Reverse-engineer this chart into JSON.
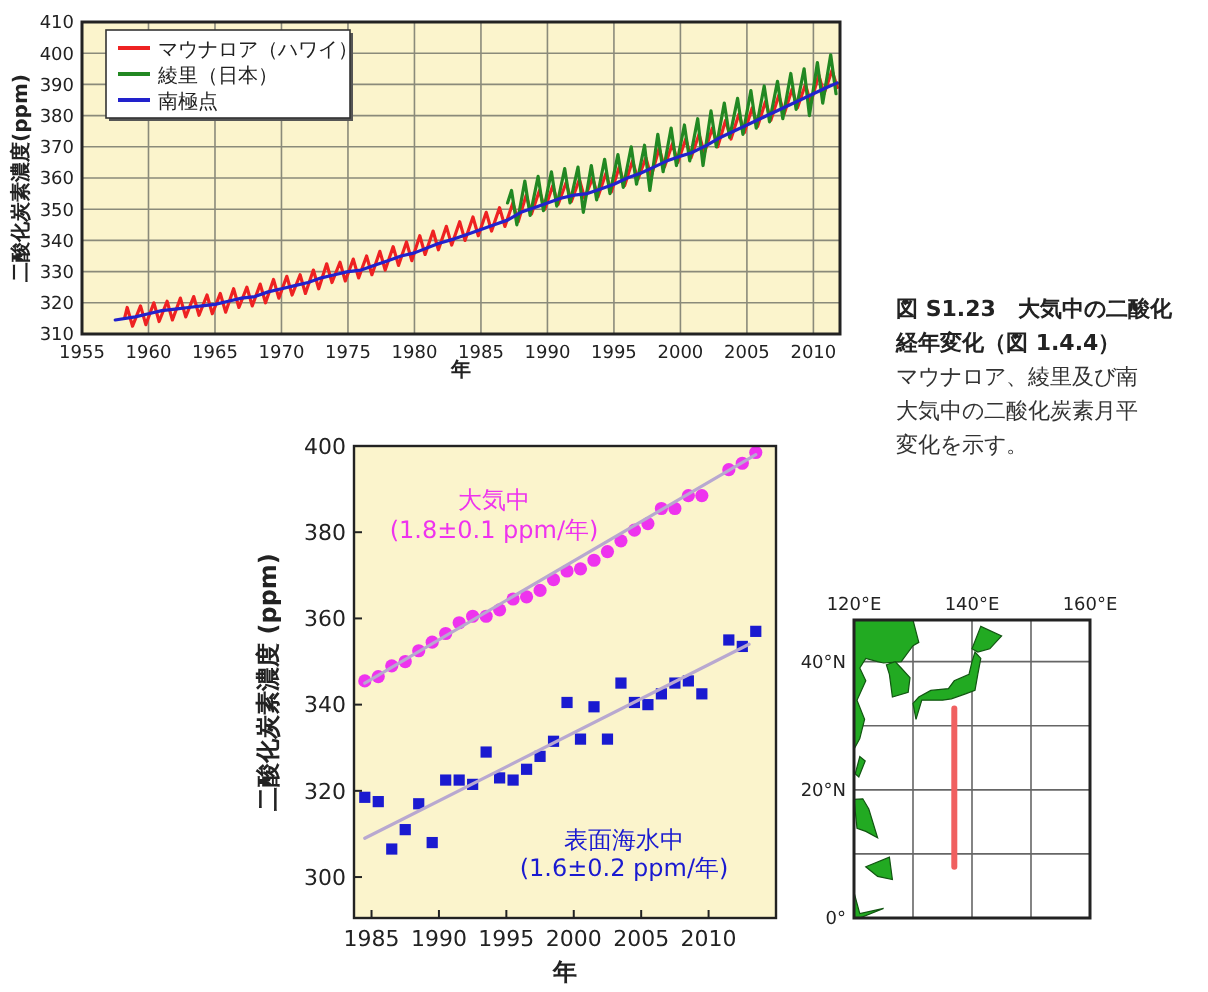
{
  "chart_data": [
    {
      "type": "line",
      "xlabel": "年",
      "ylabel": "二酸化炭素濃度(ppm)",
      "xlim": [
        1955,
        2012
      ],
      "ylim": [
        310,
        410
      ],
      "xticks": [
        1955,
        1960,
        1965,
        1970,
        1975,
        1980,
        1985,
        1990,
        1995,
        2000,
        2005,
        2010
      ],
      "yticks": [
        310,
        320,
        330,
        340,
        350,
        360,
        370,
        380,
        390,
        400,
        410
      ],
      "grid": true,
      "legend": "top left",
      "marker": "none",
      "line_style": "solid",
      "series": [
        {
          "name": "マウナロア（ハワイ）",
          "color": "#ee2222",
          "x": [
            1958.2,
            1958.4,
            1958.8,
            1959.4,
            1959.8,
            1960.4,
            1960.8,
            1961.4,
            1961.8,
            1962.4,
            1962.8,
            1963.4,
            1963.8,
            1964.4,
            1964.8,
            1965.4,
            1965.8,
            1966.4,
            1966.8,
            1967.4,
            1967.8,
            1968.4,
            1968.8,
            1969.4,
            1969.8,
            1970.4,
            1970.8,
            1971.4,
            1971.8,
            1972.4,
            1972.8,
            1973.4,
            1973.8,
            1974.4,
            1974.8,
            1975.4,
            1975.8,
            1976.4,
            1976.8,
            1977.4,
            1977.8,
            1978.4,
            1978.8,
            1979.4,
            1979.8,
            1980.4,
            1980.8,
            1981.4,
            1981.8,
            1982.4,
            1982.8,
            1983.4,
            1983.8,
            1984.4,
            1984.8,
            1985.4,
            1985.8,
            1986.4,
            1986.8,
            1987.4,
            1987.8,
            1988.4,
            1988.8,
            1989.4,
            1989.8,
            1990.4,
            1990.8,
            1991.4,
            1991.8,
            1992.4,
            1992.8,
            1993.4,
            1993.8,
            1994.4,
            1994.8,
            1995.4,
            1995.8,
            1996.4,
            1996.8,
            1997.4,
            1997.8,
            1998.4,
            1998.8,
            1999.4,
            1999.8,
            2000.4,
            2000.8,
            2001.4,
            2001.8,
            2002.4,
            2002.8,
            2003.4,
            2003.8,
            2004.4,
            2004.8,
            2005.4,
            2005.8,
            2006.4,
            2006.8,
            2007.4,
            2007.8,
            2008.4,
            2008.8,
            2009.4,
            2009.8,
            2010.4,
            2010.8,
            2011.4,
            2011.8
          ],
          "values": [
            315,
            318.5,
            312.5,
            319,
            313,
            320,
            314,
            320.5,
            314.5,
            321.5,
            315.5,
            322,
            316,
            322.5,
            316.5,
            323,
            317,
            324.5,
            318.5,
            325,
            319,
            326,
            320,
            327.5,
            321.5,
            328.5,
            322.5,
            329,
            323,
            330.5,
            324.5,
            332.5,
            326.5,
            333,
            327,
            334,
            328,
            335,
            329,
            336.5,
            330.5,
            338,
            332,
            339.5,
            333.5,
            341.5,
            335.5,
            343,
            337,
            344.5,
            338.5,
            346,
            340,
            347.5,
            341.5,
            349,
            343,
            350.5,
            344.5,
            352,
            346,
            354.5,
            348.5,
            356,
            350,
            357.5,
            351.5,
            358.5,
            352.5,
            359.5,
            353.5,
            360,
            354,
            361.5,
            355.5,
            363.5,
            357.5,
            365.5,
            359.5,
            366.5,
            360.5,
            369.5,
            363.5,
            371,
            365,
            372.5,
            366.5,
            374,
            368,
            376,
            370,
            378.5,
            372.5,
            380.5,
            374.5,
            382.5,
            376.5,
            384.5,
            378.5,
            386.5,
            380.5,
            388.5,
            382.5,
            390,
            384,
            393,
            387,
            394.5,
            389
          ]
        },
        {
          "name": "綾里（日本）",
          "color": "#228822",
          "x": [
            1987.0,
            1987.3,
            1987.7,
            1988.3,
            1988.7,
            1989.3,
            1989.7,
            1990.3,
            1990.7,
            1991.3,
            1991.7,
            1992.3,
            1992.7,
            1993.3,
            1993.7,
            1994.3,
            1994.7,
            1995.3,
            1995.7,
            1996.3,
            1996.7,
            1997.3,
            1997.7,
            1998.3,
            1998.7,
            1999.3,
            1999.7,
            2000.3,
            2000.7,
            2001.3,
            2001.7,
            2002.3,
            2002.7,
            2003.3,
            2003.7,
            2004.3,
            2004.7,
            2005.3,
            2005.7,
            2006.3,
            2006.7,
            2007.3,
            2007.7,
            2008.3,
            2008.7,
            2009.3,
            2009.7,
            2010.3,
            2010.7,
            2011.3,
            2011.7
          ],
          "values": [
            352,
            356,
            345,
            359,
            348,
            360.5,
            349.5,
            362,
            351,
            363,
            352,
            363.5,
            349,
            364,
            353,
            366,
            355,
            367.5,
            357,
            370,
            358,
            370.5,
            356,
            374,
            362,
            376,
            364,
            377,
            365.5,
            379,
            364,
            381.5,
            370,
            384,
            373,
            385.5,
            374,
            388,
            376,
            389.5,
            378,
            391,
            379,
            393.5,
            382,
            395,
            380,
            397,
            384,
            399.5,
            387
          ]
        },
        {
          "name": "南極点",
          "color": "#2222cc",
          "x": [
            1957.5,
            1959,
            1960,
            1961,
            1962,
            1963,
            1964,
            1965,
            1966,
            1967,
            1968,
            1969,
            1970,
            1971,
            1972,
            1973,
            1974,
            1975,
            1976,
            1977,
            1978,
            1979,
            1980,
            1981.8,
            1983,
            1984,
            1985,
            1986,
            1987,
            1988,
            1989,
            1990,
            1991,
            1992,
            1993,
            1994,
            1995,
            1996,
            1997,
            1998,
            1999,
            2000,
            2000.8,
            2001.5,
            2002,
            2003,
            2004,
            2005,
            2006,
            2007,
            2008,
            2009,
            2010,
            2011,
            2011.8
          ],
          "values": [
            314.5,
            315.5,
            316.5,
            317.5,
            318,
            318.5,
            319,
            319.5,
            320.5,
            321.5,
            322,
            323.5,
            324.5,
            325.5,
            326.5,
            328,
            329,
            330,
            330.5,
            332,
            333.5,
            335,
            336,
            339,
            340.5,
            342,
            343.5,
            345,
            346.5,
            349,
            350.5,
            352,
            353.5,
            354.5,
            355,
            356.5,
            358,
            360,
            361.5,
            363.5,
            365.5,
            367,
            368,
            369.5,
            370.5,
            373,
            375,
            377,
            379,
            381,
            383,
            385,
            387,
            389,
            390.5
          ]
        }
      ]
    },
    {
      "type": "other",
      "title": "図 S1.23　大気中の二酸化",
      "subtitle": "経年変化（図 1.4.4）",
      "annotations": [
        "マウナロア、綾里及び南",
        "大気中の二酸化炭素月平",
        "変化を示す。"
      ]
    },
    {
      "type": "scatter",
      "xlabel": "年",
      "ylabel": "二酸化炭素濃度 (ppm)",
      "xlim": [
        1983.7,
        2015
      ],
      "ylim": [
        290.5,
        400
      ],
      "xticks": [
        1985,
        1990,
        1995,
        2000,
        2005,
        2010
      ],
      "yticks": [
        300,
        320,
        340,
        360,
        380,
        400
      ],
      "series": [
        {
          "color": "#ee33ee",
          "marker": "circle",
          "x": [
            1984.5,
            1985.5,
            1986.5,
            1987.5,
            1988.5,
            1989.5,
            1990.5,
            1991.5,
            1992.5,
            1993.5,
            1994.5,
            1995.5,
            1996.5,
            1997.5,
            1998.5,
            1999.5,
            2000.5,
            2001.5,
            2002.5,
            2003.5,
            2004.5,
            2005.5,
            2006.5,
            2007.5,
            2008.5,
            2009.5,
            2011.5,
            2012.5,
            2013.5
          ],
          "values": [
            345.5,
            346.5,
            349,
            350,
            352.5,
            354.5,
            356.5,
            359,
            360.5,
            360.5,
            362,
            364.5,
            365,
            366.5,
            369,
            371,
            371.5,
            373.5,
            375.5,
            378,
            380.5,
            382,
            385.5,
            385.5,
            388.5,
            388.5,
            394.5,
            396,
            398.5
          ]
        },
        {
          "color": "#1a1ad0",
          "marker": "square",
          "x": [
            1984.5,
            1985.5,
            1986.5,
            1987.5,
            1988.5,
            1989.5,
            1990.5,
            1991.5,
            1992.5,
            1993.5,
            1994.5,
            1995.5,
            1996.5,
            1997.5,
            1998.5,
            1999.5,
            2000.5,
            2001.5,
            2002.5,
            2003.5,
            2004.5,
            2005.5,
            2006.5,
            2007.5,
            2008.5,
            2009.5,
            2011.5,
            2012.5,
            2013.5
          ],
          "values": [
            318.5,
            317.5,
            306.5,
            311,
            317,
            308,
            322.5,
            322.5,
            321.5,
            329,
            323,
            322.5,
            325,
            328,
            331.5,
            340.5,
            332,
            339.5,
            332,
            345,
            340.5,
            340,
            342.5,
            345,
            345.5,
            342.5,
            355,
            353.5,
            357
          ]
        },
        {
          "type": "line",
          "color": "#b8a8d0",
          "marker": "none",
          "x": [
            1984.5,
            2013.5
          ],
          "values": [
            345,
            398
          ]
        },
        {
          "type": "line",
          "color": "#b8a8d0",
          "marker": "none",
          "x": [
            1984.5,
            2013
          ],
          "values": [
            309,
            354
          ]
        }
      ],
      "annotations": [
        "大気中",
        "(1.8±0.1 ppm/年)",
        "表面海水中",
        "(1.6±0.2 ppm/年)"
      ]
    },
    {
      "type": "line",
      "xlim": [
        120,
        160
      ],
      "ylim": [
        0,
        46.5
      ],
      "xticks": [
        {
          "value": 120,
          "label": "120°E"
        },
        {
          "value": 130,
          "label": null
        },
        {
          "value": 140,
          "label": "140°E"
        },
        {
          "value": 150,
          "label": null
        },
        {
          "value": 160,
          "label": "160°E"
        }
      ],
      "yticks": [
        {
          "value": 0,
          "label": "0°"
        },
        {
          "value": 10,
          "label": null
        },
        {
          "value": 20,
          "label": "20°N"
        },
        {
          "value": 30,
          "label": null
        },
        {
          "value": 40,
          "label": "40°N"
        }
      ],
      "grid": true,
      "series": [
        {
          "type": "line",
          "color": "#f06060",
          "x": [
            137,
            137
          ],
          "values": [
            8,
            32.7
          ]
        }
      ]
    }
  ]
}
